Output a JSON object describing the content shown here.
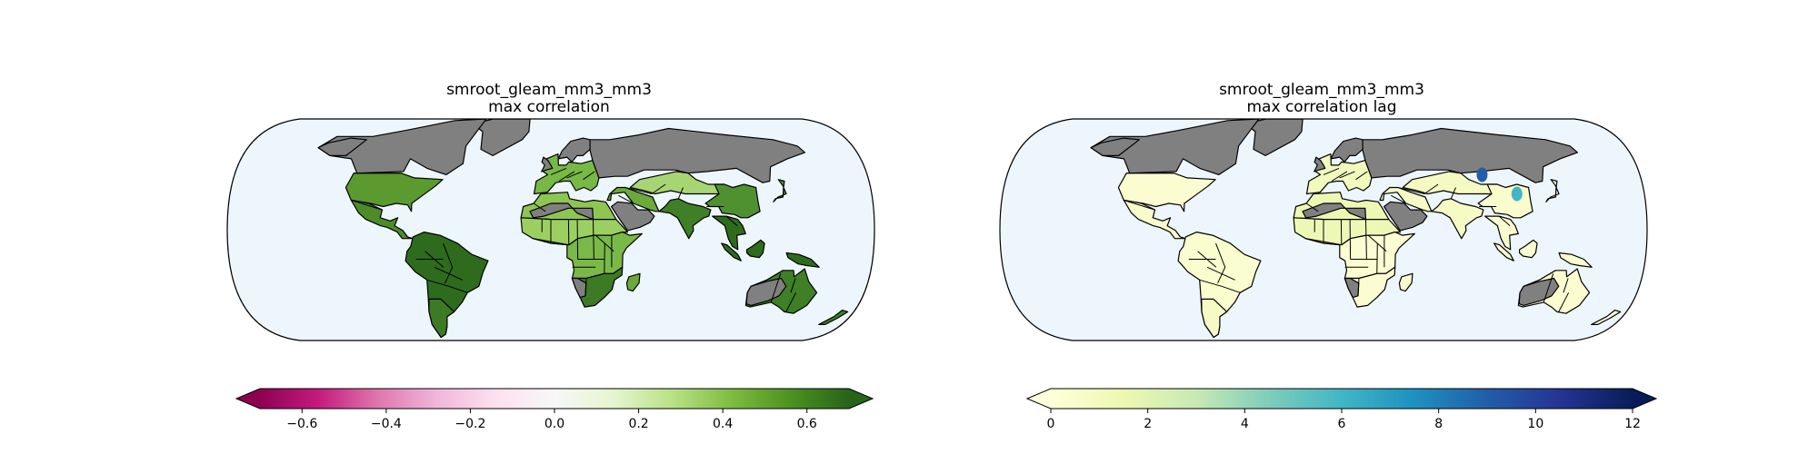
{
  "figure": {
    "background": "#ffffff"
  },
  "panels": [
    {
      "id": "left",
      "title_line1": "smroot_gleam_mm3_mm3",
      "title_line2": "max correlation",
      "ocean_color": "#eef6fd",
      "land_nodata_color": "#808080",
      "colorbar": {
        "cmap": "PiYG",
        "stops": [
          "#8e0152",
          "#c51b7d",
          "#de77ae",
          "#f1b6da",
          "#fde0ef",
          "#f7f7f7",
          "#e6f5d0",
          "#b8e186",
          "#7fbc41",
          "#4d9221",
          "#276419"
        ],
        "min": -0.7,
        "max": 0.7,
        "extend": "both",
        "ticks": [
          "−0.6",
          "−0.4",
          "−0.2",
          "0.0",
          "0.2",
          "0.4",
          "0.6"
        ],
        "tick_values": [
          -0.6,
          -0.4,
          -0.2,
          0.0,
          0.2,
          0.4,
          0.6
        ]
      },
      "region_colors": {
        "north_america": "#5a9a2f",
        "central_america": "#4d8c2a",
        "south_america": "#2e6b1d",
        "south_america_south": "#3d7a25",
        "europe": "#78b845",
        "north_africa": "#8dc653",
        "sahel": "#9bcf62",
        "africa_central": "#7ab848",
        "africa_south": "#3d7a25",
        "middle_east": "#6aaa3a",
        "india": "#3f7f26",
        "central_asia": "#a8d574",
        "east_asia": "#4f9130",
        "southeast_asia": "#2f6b1d",
        "australia_north": "#5a9a2f",
        "australia_east": "#3f7f26",
        "madagascar": "#6aaa3a"
      }
    },
    {
      "id": "right",
      "title_line1": "smroot_gleam_mm3_mm3",
      "title_line2": "max correlation lag",
      "ocean_color": "#eef6fd",
      "land_nodata_color": "#808080",
      "colorbar": {
        "cmap": "YlGnBu",
        "stops": [
          "#ffffd9",
          "#edf8b1",
          "#c7e9b4",
          "#7fcdbb",
          "#41b6c4",
          "#1d91c0",
          "#225ea8",
          "#253494",
          "#081d58"
        ],
        "min": 0,
        "max": 12,
        "extend": "both",
        "ticks": [
          "0",
          "2",
          "4",
          "6",
          "8",
          "10",
          "12"
        ],
        "tick_values": [
          0,
          2,
          4,
          6,
          8,
          10,
          12
        ]
      },
      "region_colors": {
        "north_america": "#fbfdd0",
        "central_america": "#f8fccb",
        "south_america": "#fafdce",
        "south_america_south": "#f5fbc4",
        "europe": "#f2f9bd",
        "north_africa": "#edf8b3",
        "sahel": "#eef8b6",
        "africa_central": "#fcfdd2",
        "africa_south": "#fbfdd0",
        "middle_east": "#f5fbc4",
        "india": "#f6fbc6",
        "central_asia": "#f4fac1",
        "east_asia": "#f9fccc",
        "southeast_asia": "#fafdce",
        "australia_north": "#f9fccc",
        "australia_east": "#fbfdd0",
        "madagascar": "#f9fccc"
      },
      "hotspots": [
        {
          "name": "china-north-hotspot",
          "color": "#41b6c4",
          "lon": 115,
          "lat": 36
        },
        {
          "name": "mongolia-hotspot",
          "color": "#225ea8",
          "lon": 100,
          "lat": 48
        }
      ]
    }
  ]
}
